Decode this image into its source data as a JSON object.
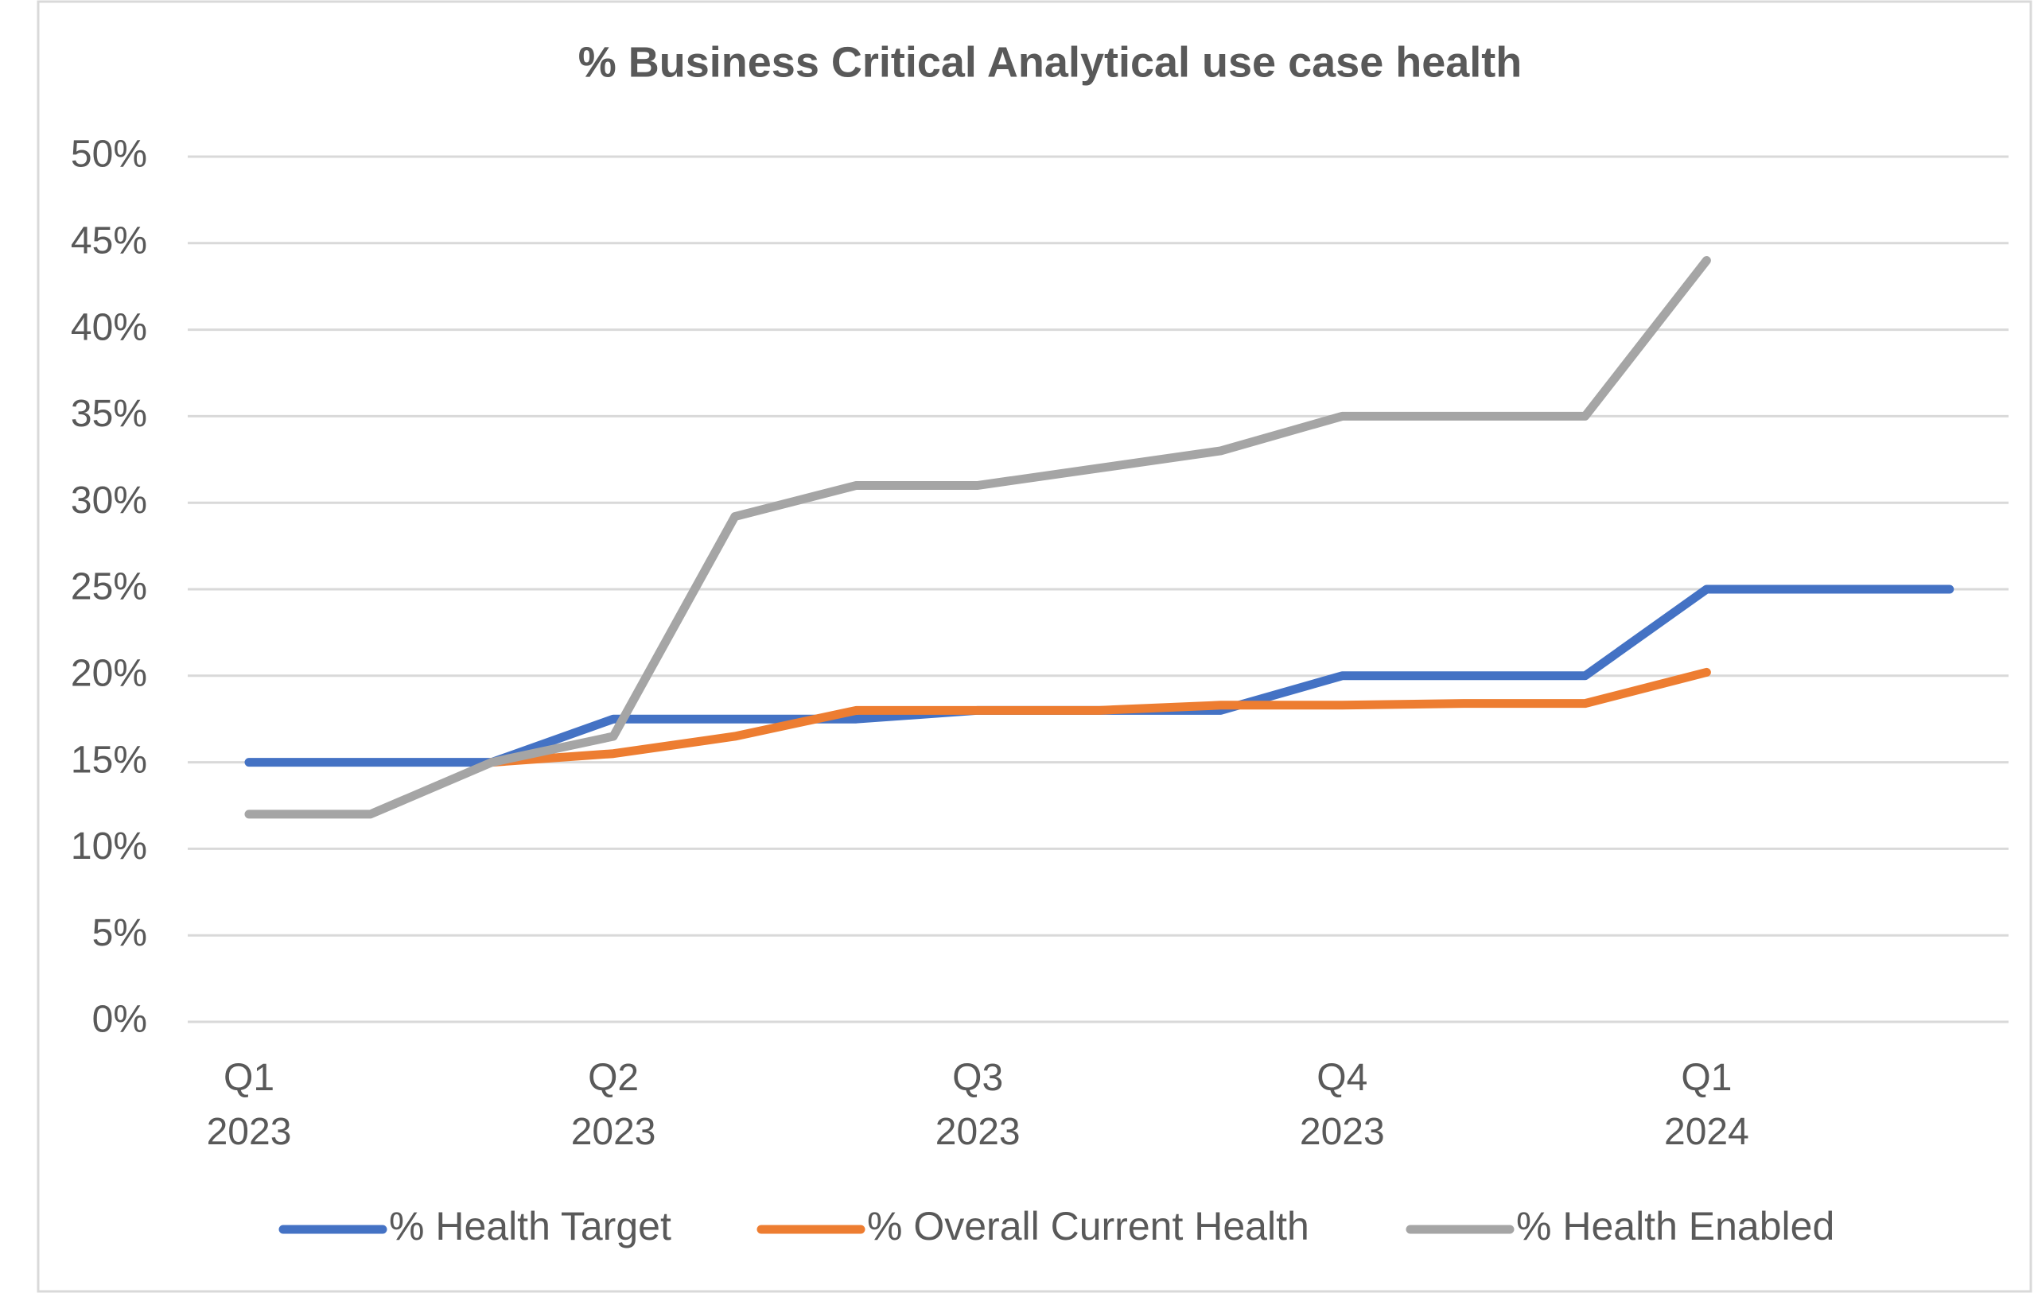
{
  "chart_data": {
    "type": "line",
    "title": "% Business Critical Analytical use case health",
    "categories": [
      "Q1 2023",
      null,
      null,
      "Q2 2023",
      null,
      null,
      "Q3 2023",
      null,
      null,
      "Q4 2023",
      null,
      null,
      "Q1 2024",
      null,
      null
    ],
    "series": [
      {
        "name": "% Health Target",
        "color": "#4472c4",
        "values": [
          15,
          15,
          15,
          17.5,
          17.5,
          17.5,
          18,
          18,
          18,
          20,
          20,
          20,
          25,
          25,
          25
        ]
      },
      {
        "name": "% Overall Current Health",
        "color": "#ed7d31",
        "values": [
          null,
          null,
          15,
          15.5,
          16.5,
          18,
          18,
          18,
          18.3,
          18.3,
          18.4,
          18.4,
          20.2,
          null,
          null
        ]
      },
      {
        "name": "% Health Enabled",
        "color": "#a5a5a5",
        "values": [
          12,
          12,
          15,
          16.5,
          29.2,
          31,
          31,
          32,
          33,
          35,
          35,
          35,
          44,
          null,
          null
        ]
      }
    ],
    "ylim": [
      0,
      50
    ],
    "yticks": [
      {
        "value": 0,
        "label": "0%"
      },
      {
        "value": 5,
        "label": "5%"
      },
      {
        "value": 10,
        "label": "10%"
      },
      {
        "value": 15,
        "label": "15%"
      },
      {
        "value": 20,
        "label": "20%"
      },
      {
        "value": 25,
        "label": "25%"
      },
      {
        "value": 30,
        "label": "30%"
      },
      {
        "value": 35,
        "label": "35%"
      },
      {
        "value": 40,
        "label": "40%"
      },
      {
        "value": 45,
        "label": "45%"
      },
      {
        "value": 50,
        "label": "50%"
      }
    ],
    "grid": true,
    "legend": "bottom"
  }
}
